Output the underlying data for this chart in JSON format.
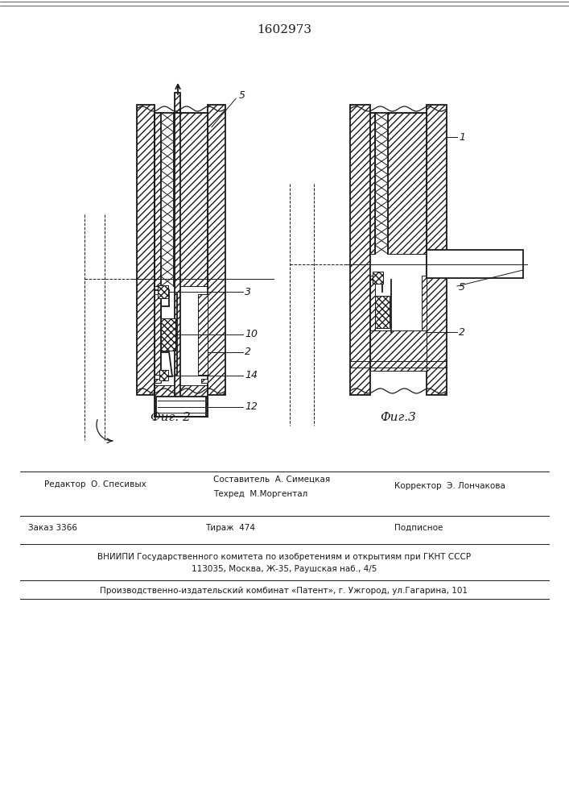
{
  "title": "1602973",
  "fig2_label": "Фиг. 2",
  "fig3_label": "Фиг.3",
  "line_color": "#1a1a1a",
  "footer_editor": "Редактор  О. Спесивых",
  "footer_compiler": "Составитель  А. Симецкая",
  "footer_techred": "Техред  М.Моргентал",
  "footer_corrector": "Корректор  Э. Лончакова",
  "footer_order": "Заказ 3366",
  "footer_tirazh": "Тираж  474",
  "footer_podpis": "Подписное",
  "footer_vniip": "ВНИИПИ Государственного комитета по изобретениям и открытиям при ГКНТ СССР",
  "footer_addr": "113035, Москва, Ж-35, Раушская наб., 4/5",
  "footer_prod": "Производственно-издательский комбинат «Патент», г. Ужгород, ул.Гагарина, 101"
}
